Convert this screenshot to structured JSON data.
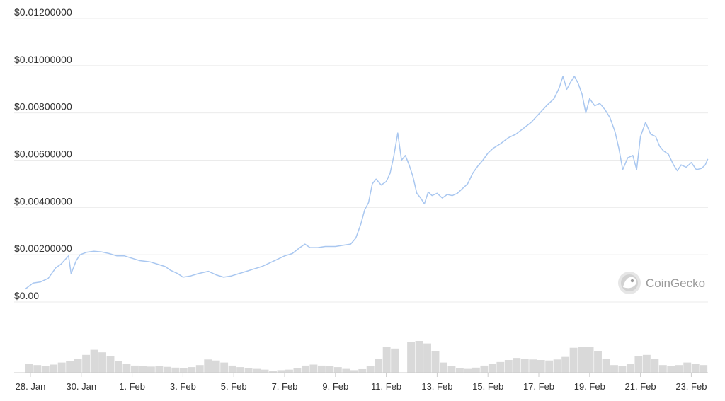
{
  "watermark": {
    "text": "CoinGecko",
    "logo_icon": "gecko-logo-icon"
  },
  "colors": {
    "price_line": "#a9c7f0",
    "volume_bars": "#d9d9d9",
    "grid": "#ebebeb",
    "text": "#333333"
  },
  "chart_data": {
    "type": "line",
    "title": "",
    "xlabel": "",
    "ylabel": "",
    "ylim": [
      0,
      0.012
    ],
    "y_tick_labels": [
      "$0.00",
      "$0.00200000",
      "$0.00400000",
      "$0.00600000",
      "$0.00800000",
      "$0.01000000",
      "$0.01200000"
    ],
    "y_tick_values": [
      0,
      0.002,
      0.004,
      0.006,
      0.008,
      0.01,
      0.012
    ],
    "x_tick_labels": [
      "28. Jan",
      "30. Jan",
      "1. Feb",
      "3. Feb",
      "5. Feb",
      "7. Feb",
      "9. Feb",
      "11. Feb",
      "13. Feb",
      "15. Feb",
      "17. Feb",
      "19. Feb",
      "21. Feb",
      "23. Feb"
    ],
    "x_tick_days": [
      0,
      2,
      4,
      6,
      8,
      10,
      12,
      14,
      16,
      18,
      20,
      22,
      24,
      26
    ],
    "grid": true,
    "legend": "none",
    "series": [
      {
        "points": [
          [
            -0.2,
            0.00055
          ],
          [
            0.1,
            0.0008
          ],
          [
            0.4,
            0.00085
          ],
          [
            0.7,
            0.001
          ],
          [
            1.0,
            0.00145
          ],
          [
            1.2,
            0.0016
          ],
          [
            1.5,
            0.00195
          ],
          [
            1.6,
            0.0012
          ],
          [
            1.8,
            0.00175
          ],
          [
            1.95,
            0.002
          ],
          [
            2.2,
            0.0021
          ],
          [
            2.5,
            0.00215
          ],
          [
            2.8,
            0.00212
          ],
          [
            3.1,
            0.00205
          ],
          [
            3.4,
            0.00195
          ],
          [
            3.7,
            0.00195
          ],
          [
            4.0,
            0.00185
          ],
          [
            4.3,
            0.00175
          ],
          [
            4.7,
            0.0017
          ],
          [
            5.0,
            0.0016
          ],
          [
            5.3,
            0.0015
          ],
          [
            5.5,
            0.00135
          ],
          [
            5.8,
            0.0012
          ],
          [
            6.0,
            0.00105
          ],
          [
            6.3,
            0.0011
          ],
          [
            6.6,
            0.0012
          ],
          [
            7.0,
            0.0013
          ],
          [
            7.3,
            0.00115
          ],
          [
            7.6,
            0.00105
          ],
          [
            7.9,
            0.0011
          ],
          [
            8.2,
            0.0012
          ],
          [
            8.5,
            0.0013
          ],
          [
            8.8,
            0.0014
          ],
          [
            9.1,
            0.0015
          ],
          [
            9.4,
            0.00165
          ],
          [
            9.7,
            0.0018
          ],
          [
            10.0,
            0.00195
          ],
          [
            10.3,
            0.00205
          ],
          [
            10.6,
            0.0023
          ],
          [
            10.8,
            0.00245
          ],
          [
            11.0,
            0.0023
          ],
          [
            11.3,
            0.0023
          ],
          [
            11.6,
            0.00235
          ],
          [
            12.0,
            0.00235
          ],
          [
            12.3,
            0.0024
          ],
          [
            12.6,
            0.00245
          ],
          [
            12.8,
            0.0027
          ],
          [
            13.0,
            0.0033
          ],
          [
            13.15,
            0.0039
          ],
          [
            13.3,
            0.0042
          ],
          [
            13.45,
            0.005
          ],
          [
            13.6,
            0.0052
          ],
          [
            13.8,
            0.00495
          ],
          [
            14.0,
            0.0051
          ],
          [
            14.15,
            0.00545
          ],
          [
            14.3,
            0.0062
          ],
          [
            14.45,
            0.00715
          ],
          [
            14.6,
            0.006
          ],
          [
            14.75,
            0.0062
          ],
          [
            14.9,
            0.0058
          ],
          [
            15.05,
            0.0053
          ],
          [
            15.2,
            0.0046
          ],
          [
            15.35,
            0.0044
          ],
          [
            15.5,
            0.00415
          ],
          [
            15.65,
            0.00465
          ],
          [
            15.8,
            0.0045
          ],
          [
            16.0,
            0.0046
          ],
          [
            16.2,
            0.0044
          ],
          [
            16.4,
            0.00455
          ],
          [
            16.6,
            0.0045
          ],
          [
            16.8,
            0.0046
          ],
          [
            17.0,
            0.0048
          ],
          [
            17.2,
            0.005
          ],
          [
            17.4,
            0.00545
          ],
          [
            17.6,
            0.00575
          ],
          [
            17.8,
            0.006
          ],
          [
            18.0,
            0.0063
          ],
          [
            18.2,
            0.0065
          ],
          [
            18.5,
            0.0067
          ],
          [
            18.8,
            0.00695
          ],
          [
            19.1,
            0.0071
          ],
          [
            19.4,
            0.00735
          ],
          [
            19.7,
            0.0076
          ],
          [
            20.0,
            0.00795
          ],
          [
            20.3,
            0.0083
          ],
          [
            20.6,
            0.0086
          ],
          [
            20.8,
            0.00905
          ],
          [
            20.95,
            0.00955
          ],
          [
            21.1,
            0.009
          ],
          [
            21.25,
            0.0093
          ],
          [
            21.4,
            0.00955
          ],
          [
            21.55,
            0.00925
          ],
          [
            21.7,
            0.0088
          ],
          [
            21.85,
            0.008
          ],
          [
            22.0,
            0.0086
          ],
          [
            22.2,
            0.0083
          ],
          [
            22.4,
            0.0084
          ],
          [
            22.6,
            0.00815
          ],
          [
            22.8,
            0.0078
          ],
          [
            23.0,
            0.0072
          ],
          [
            23.15,
            0.0065
          ],
          [
            23.3,
            0.0056
          ],
          [
            23.5,
            0.0061
          ],
          [
            23.7,
            0.0062
          ],
          [
            23.85,
            0.0056
          ],
          [
            24.0,
            0.007
          ],
          [
            24.2,
            0.0076
          ],
          [
            24.4,
            0.0071
          ],
          [
            24.6,
            0.007
          ],
          [
            24.75,
            0.0066
          ],
          [
            24.9,
            0.0064
          ],
          [
            25.1,
            0.00625
          ],
          [
            25.3,
            0.0058
          ],
          [
            25.45,
            0.00555
          ],
          [
            25.6,
            0.0058
          ],
          [
            25.8,
            0.0057
          ],
          [
            26.0,
            0.0059
          ],
          [
            26.2,
            0.0056
          ],
          [
            26.4,
            0.00565
          ],
          [
            26.55,
            0.0058
          ],
          [
            26.65,
            0.00605
          ]
        ]
      }
    ],
    "volume": {
      "x_start_day": -0.2,
      "x_end_day": 26.65,
      "relative_levels": [
        0.35,
        0.3,
        0.25,
        0.32,
        0.4,
        0.45,
        0.55,
        0.7,
        0.9,
        0.8,
        0.65,
        0.45,
        0.35,
        0.28,
        0.25,
        0.24,
        0.25,
        0.23,
        0.2,
        0.18,
        0.22,
        0.3,
        0.52,
        0.48,
        0.4,
        0.28,
        0.22,
        0.18,
        0.15,
        0.12,
        0.08,
        0.1,
        0.12,
        0.18,
        0.28,
        0.32,
        0.28,
        0.25,
        0.22,
        0.15,
        0.1,
        0.14,
        0.25,
        0.55,
        1.0,
        0.95,
        0.0,
        1.2,
        1.25,
        1.15,
        0.85,
        0.4,
        0.25,
        0.18,
        0.15,
        0.2,
        0.28,
        0.35,
        0.42,
        0.5,
        0.58,
        0.55,
        0.52,
        0.5,
        0.48,
        0.52,
        0.62,
        0.98,
        1.0,
        1.0,
        0.85,
        0.55,
        0.3,
        0.25,
        0.35,
        0.65,
        0.7,
        0.55,
        0.3,
        0.25,
        0.3,
        0.4,
        0.35,
        0.3
      ]
    }
  }
}
